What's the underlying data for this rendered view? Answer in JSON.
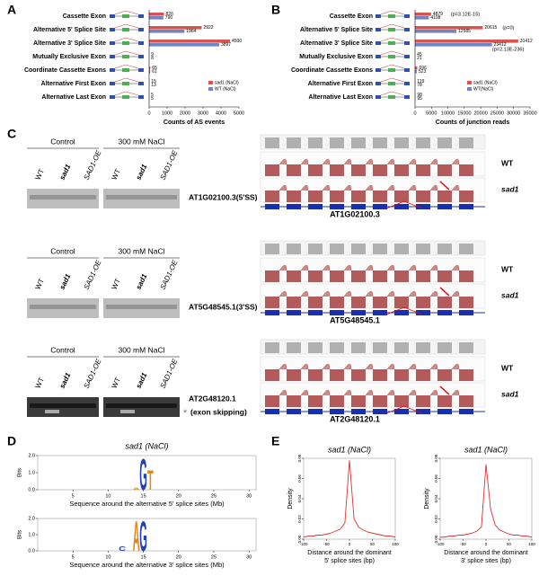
{
  "panel_labels": [
    "A",
    "B",
    "C",
    "D",
    "E"
  ],
  "chart_data": [
    {
      "type": "hbar",
      "xlabel": "Counts of AS events",
      "categories": [
        "Cassette Exon",
        "Alternative 5' Splice Site",
        "Alternative 3' Splice Site",
        "Mutually Exclusive Exon",
        "Coordinate Cassette Exons",
        "Alternative First Exon",
        "Alternative Last Exon"
      ],
      "series": [
        {
          "name": "sad1 (NaCl)",
          "color": "#d9534f",
          "values": [
            826,
            2922,
            4500,
            9,
            65,
            15,
            5
          ]
        },
        {
          "name": "WT (NaCl)",
          "color": "#6f86c6",
          "values": [
            790,
            1964,
            3897,
            8,
            61,
            13,
            5
          ]
        }
      ],
      "xlim": [
        0,
        5000
      ],
      "xticks": [
        0,
        1000,
        2000,
        3000,
        4000,
        5000
      ]
    },
    {
      "type": "hbar",
      "xlabel": "Counts of junction reads",
      "categories": [
        "Cassette Exon",
        "Alternative 5' Splice Site",
        "Alternative 3' Splice Site",
        "Mutually Exclusive Exon",
        "Coordinate Cassette Exons",
        "Alternative First Exon",
        "Alternative Last Exon"
      ],
      "series": [
        {
          "name": "sad1 (NaCl)",
          "color": "#d9534f",
          "values": [
            4879,
            20615,
            31412,
            45,
            696,
            119,
            98
          ]
        },
        {
          "name": "WT(NaCl)",
          "color": "#6f86c6",
          "values": [
            4198,
            12585,
            23412,
            21,
            523,
            78,
            95
          ]
        }
      ],
      "annotations": [
        "(p=3.12E-15)",
        "(p=0)",
        "(p=2.13E-236)"
      ],
      "xlim": [
        0,
        35000
      ],
      "xticks": [
        0,
        5000,
        10000,
        15000,
        20000,
        25000,
        30000,
        35000
      ]
    },
    {
      "type": "logo",
      "title": "sad1 (NaCl)",
      "xlabel": "Sequence around the alternative 5' splice sites (Mb)",
      "ylabel": "Bits",
      "x": [
        14,
        15,
        16
      ],
      "letters": [
        "A",
        "G",
        "T"
      ],
      "values": [
        0.15,
        1.9,
        1.2
      ],
      "colors": [
        "#e08a1e",
        "#2340c0",
        "#e08a1e"
      ],
      "xlim": [
        0,
        31
      ],
      "xticks": [
        5,
        10,
        15,
        20,
        25,
        30
      ],
      "ylim": [
        0,
        2
      ],
      "yticks": [
        {
          "value": 0,
          "label": "0.0"
        },
        {
          "value": 1,
          "label": "1.0"
        },
        {
          "value": 2,
          "label": "2.0"
        }
      ]
    },
    {
      "type": "logo",
      "xlabel": "Sequence around the alternative 3' splice sites (Mb)",
      "ylabel": "Bits",
      "x": [
        12,
        14,
        15
      ],
      "letters": [
        "C",
        "A",
        "G"
      ],
      "values": [
        0.3,
        1.9,
        1.9
      ],
      "colors": [
        "#2340c0",
        "#e08a1e",
        "#2340c0"
      ],
      "xlim": [
        0,
        31
      ],
      "xticks": [
        5,
        10,
        15,
        20,
        25,
        30
      ],
      "ylim": [
        0,
        2
      ],
      "yticks": [
        {
          "value": 0,
          "label": "0.0"
        },
        {
          "value": 1,
          "label": "1.0"
        },
        {
          "value": 2,
          "label": "2.0"
        }
      ]
    },
    {
      "type": "line",
      "title": "sad1 (NaCl)",
      "xlabel": [
        "Distance around the dominant",
        "5' splice sites (bp)"
      ],
      "ylabel": "Density",
      "color": "#e03030",
      "x": [
        -100,
        -90,
        -80,
        -70,
        -60,
        -50,
        -40,
        -30,
        -20,
        -10,
        0,
        10,
        20,
        30,
        40,
        50,
        60,
        70,
        80,
        90,
        100
      ],
      "values": [
        0.002,
        0.003,
        0.003,
        0.004,
        0.004,
        0.005,
        0.006,
        0.008,
        0.01,
        0.016,
        0.078,
        0.02,
        0.012,
        0.009,
        0.007,
        0.006,
        0.005,
        0.004,
        0.003,
        0.003,
        0.002
      ],
      "xlim": [
        -100,
        100
      ],
      "xticks": [
        -100,
        -50,
        0,
        50,
        100
      ],
      "ylim": [
        0,
        0.08
      ],
      "yticks": [
        {
          "value": 0,
          "label": "0.00"
        },
        {
          "value": 0.02,
          "label": "0.02"
        },
        {
          "value": 0.04,
          "label": "0.04"
        },
        {
          "value": 0.06,
          "label": "0.06"
        },
        {
          "value": 0.08,
          "label": "0.08"
        }
      ]
    },
    {
      "type": "line",
      "title": "sad1 (NaCl)",
      "xlabel": [
        "Distance around the dominant",
        "3' splice sites (bp)"
      ],
      "ylabel": "Density",
      "color": "#e03030",
      "x": [
        -100,
        -90,
        -80,
        -70,
        -60,
        -50,
        -40,
        -30,
        -20,
        -10,
        0,
        10,
        20,
        30,
        40,
        50,
        60,
        70,
        80,
        90,
        100
      ],
      "values": [
        0.002,
        0.002,
        0.003,
        0.003,
        0.004,
        0.004,
        0.005,
        0.006,
        0.008,
        0.012,
        0.074,
        0.03,
        0.014,
        0.009,
        0.007,
        0.005,
        0.004,
        0.004,
        0.003,
        0.003,
        0.002
      ],
      "xlim": [
        -100,
        100
      ],
      "xticks": [
        -100,
        -50,
        0,
        50,
        100
      ],
      "ylim": [
        0,
        0.08
      ],
      "yticks": [
        {
          "value": 0,
          "label": "0.00"
        },
        {
          "value": 0.02,
          "label": "0.02"
        },
        {
          "value": 0.04,
          "label": "0.04"
        },
        {
          "value": 0.06,
          "label": "0.06"
        },
        {
          "value": 0.08,
          "label": "0.08"
        }
      ]
    }
  ],
  "gels": [
    {
      "headers": [
        "Control",
        "300 mM NaCl"
      ],
      "lanes": [
        "WT",
        "sad1",
        "SAD1-OE",
        "WT",
        "sad1",
        "SAD1-OE"
      ],
      "label": "AT1G02100.3(5'SS)"
    },
    {
      "headers": [
        "Control",
        "300 mM NaCl"
      ],
      "lanes": [
        "WT",
        "sad1",
        "SAD1-OE",
        "WT",
        "sad1",
        "SAD1-OE"
      ],
      "label": "AT5G48545.1(3'SS)"
    },
    {
      "headers": [
        "Control",
        "300 mM NaCl"
      ],
      "lanes": [
        "WT",
        "sad1",
        "SAD1-OE",
        "WT",
        "sad1",
        "SAD1-OE"
      ],
      "label": "AT2G48120.1",
      "note_symbol": "*",
      "note": "(exon skipping)"
    }
  ],
  "sashimi": [
    {
      "tracks": [
        "WT",
        "sad1"
      ],
      "gene": "AT1G02100.3"
    },
    {
      "tracks": [
        "WT",
        "sad1"
      ],
      "gene": "AT5G48545.1"
    },
    {
      "tracks": [
        "WT",
        "sad1"
      ],
      "gene": "AT2G48120.1"
    }
  ]
}
